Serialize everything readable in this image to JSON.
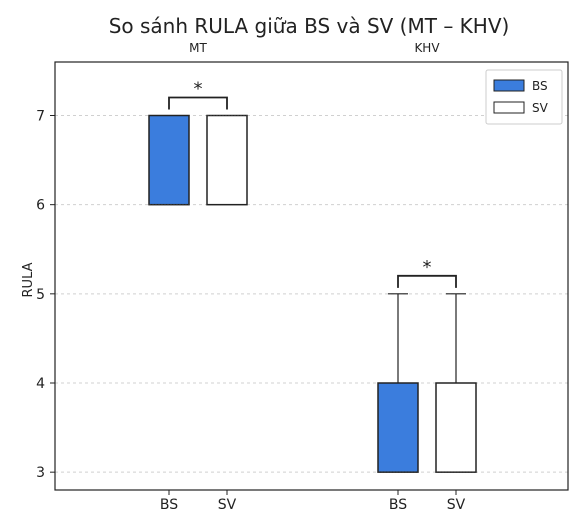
{
  "chart_data": {
    "type": "box",
    "title": "So sánh RULA giữa BS và SV (MT – KHV)",
    "xlabel": "",
    "ylabel": "RULA",
    "ylim": [
      2.8,
      7.6
    ],
    "yticks": [
      3,
      4,
      5,
      6,
      7
    ],
    "grid": "horizontal dashed",
    "legend_position": "top-right",
    "groups": [
      {
        "name": "MT",
        "significance": "*",
        "boxes": [
          {
            "label": "BS",
            "series": "BS",
            "min": 6,
            "q1": 6,
            "median": 6,
            "q3": 7,
            "max": 7
          },
          {
            "label": "SV",
            "series": "SV",
            "min": 6,
            "q1": 6,
            "median": 7,
            "q3": 7,
            "max": 7
          }
        ]
      },
      {
        "name": "KHV",
        "significance": "*",
        "boxes": [
          {
            "label": "BS",
            "series": "BS",
            "min": 3,
            "q1": 3,
            "median": 3,
            "q3": 4,
            "max": 5
          },
          {
            "label": "SV",
            "series": "SV",
            "min": 3,
            "q1": 3,
            "median": 3,
            "q3": 4,
            "max": 5
          }
        ]
      }
    ],
    "series": [
      {
        "name": "BS",
        "color": "#3b7ddd"
      },
      {
        "name": "SV",
        "color": "#ffffff"
      }
    ]
  }
}
